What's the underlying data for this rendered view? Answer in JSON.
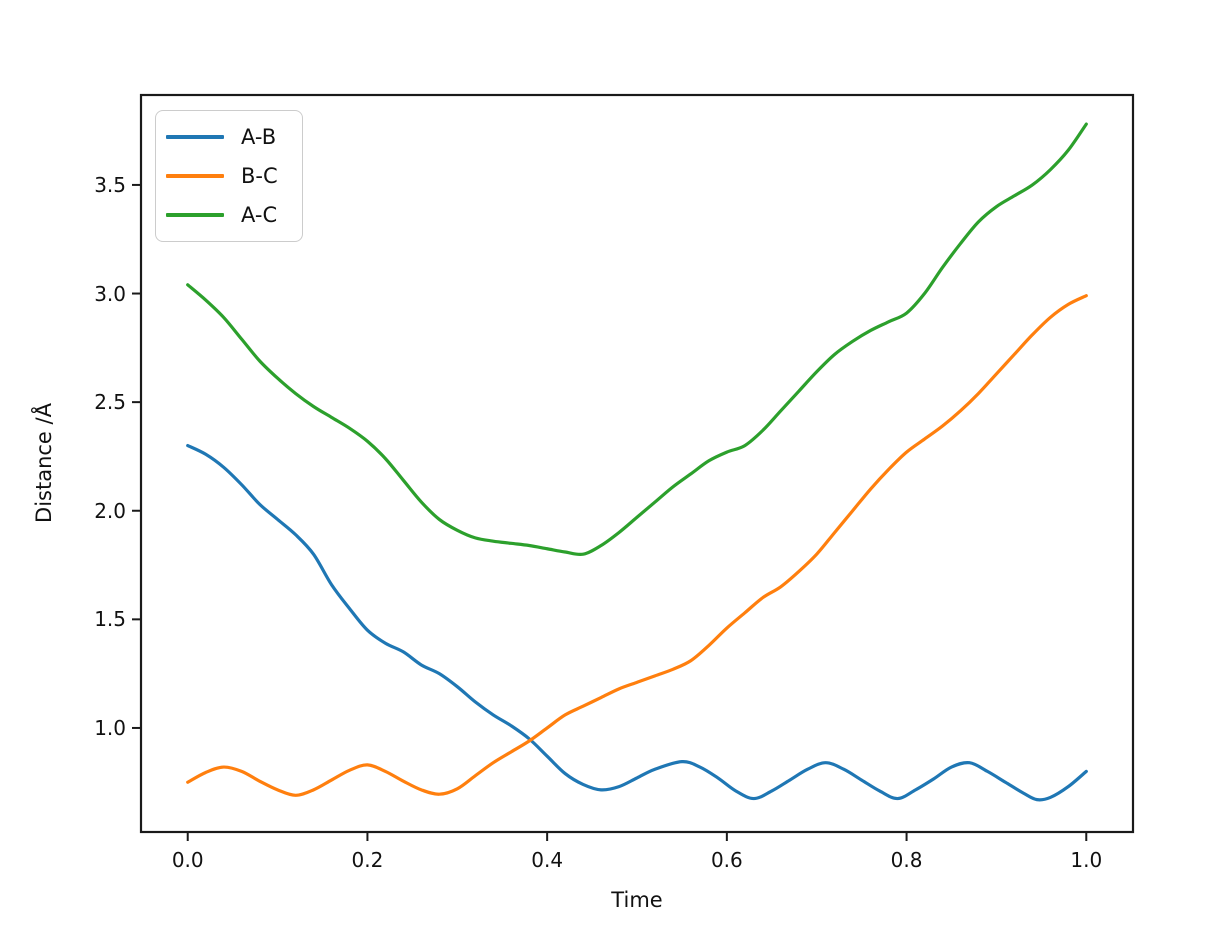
{
  "figure": {
    "background": "#ffffff",
    "text_color": "#111111",
    "spine_color": "#1a1a1a"
  },
  "axes": {
    "xlim": [
      -0.052,
      1.052
    ],
    "ylim": [
      0.521,
      3.914
    ],
    "x_ticks": [
      0.0,
      0.2,
      0.4,
      0.6,
      0.8,
      1.0
    ],
    "x_tick_labels": [
      "0.0",
      "0.2",
      "0.4",
      "0.6",
      "0.8",
      "1.0"
    ],
    "y_ticks": [
      1.0,
      1.5,
      2.0,
      2.5,
      3.0,
      3.5
    ],
    "y_tick_labels": [
      "1.0",
      "1.5",
      "2.0",
      "2.5",
      "3.0",
      "3.5"
    ],
    "grid": false
  },
  "legend": {
    "position": "upper left",
    "entries": [
      "A-B",
      "B-C",
      "A-C"
    ]
  },
  "chart_data": {
    "type": "line",
    "title": "",
    "xlabel": "Time",
    "ylabel": "Distance /Å",
    "xlim": [
      -0.05,
      1.05
    ],
    "ylim": [
      0.52,
      3.91
    ],
    "grid": false,
    "legend_position": "upper left",
    "series": [
      {
        "name": "A-B",
        "color": "#1f77b4",
        "points": [
          [
            0.0,
            2.3
          ],
          [
            0.02,
            2.26
          ],
          [
            0.04,
            2.2
          ],
          [
            0.06,
            2.12
          ],
          [
            0.08,
            2.03
          ],
          [
            0.1,
            1.96
          ],
          [
            0.12,
            1.89
          ],
          [
            0.14,
            1.8
          ],
          [
            0.16,
            1.66
          ],
          [
            0.18,
            1.55
          ],
          [
            0.2,
            1.45
          ],
          [
            0.22,
            1.39
          ],
          [
            0.24,
            1.35
          ],
          [
            0.26,
            1.29
          ],
          [
            0.28,
            1.25
          ],
          [
            0.3,
            1.19
          ],
          [
            0.32,
            1.12
          ],
          [
            0.34,
            1.06
          ],
          [
            0.36,
            1.01
          ],
          [
            0.38,
            0.95
          ],
          [
            0.4,
            0.87
          ],
          [
            0.42,
            0.79
          ],
          [
            0.44,
            0.74
          ],
          [
            0.46,
            0.715
          ],
          [
            0.48,
            0.73
          ],
          [
            0.5,
            0.77
          ],
          [
            0.52,
            0.81
          ],
          [
            0.55,
            0.845
          ],
          [
            0.57,
            0.82
          ],
          [
            0.59,
            0.77
          ],
          [
            0.61,
            0.71
          ],
          [
            0.63,
            0.675
          ],
          [
            0.65,
            0.71
          ],
          [
            0.67,
            0.76
          ],
          [
            0.69,
            0.81
          ],
          [
            0.71,
            0.84
          ],
          [
            0.73,
            0.81
          ],
          [
            0.75,
            0.76
          ],
          [
            0.77,
            0.71
          ],
          [
            0.79,
            0.675
          ],
          [
            0.81,
            0.715
          ],
          [
            0.83,
            0.765
          ],
          [
            0.85,
            0.82
          ],
          [
            0.87,
            0.84
          ],
          [
            0.89,
            0.8
          ],
          [
            0.91,
            0.75
          ],
          [
            0.93,
            0.7
          ],
          [
            0.945,
            0.67
          ],
          [
            0.96,
            0.68
          ],
          [
            0.98,
            0.73
          ],
          [
            1.0,
            0.8
          ]
        ]
      },
      {
        "name": "B-C",
        "color": "#ff7f0e",
        "points": [
          [
            0.0,
            0.75
          ],
          [
            0.02,
            0.795
          ],
          [
            0.04,
            0.82
          ],
          [
            0.06,
            0.8
          ],
          [
            0.08,
            0.755
          ],
          [
            0.1,
            0.715
          ],
          [
            0.12,
            0.69
          ],
          [
            0.14,
            0.715
          ],
          [
            0.16,
            0.76
          ],
          [
            0.18,
            0.805
          ],
          [
            0.2,
            0.83
          ],
          [
            0.22,
            0.8
          ],
          [
            0.24,
            0.755
          ],
          [
            0.26,
            0.715
          ],
          [
            0.28,
            0.695
          ],
          [
            0.3,
            0.72
          ],
          [
            0.32,
            0.78
          ],
          [
            0.34,
            0.84
          ],
          [
            0.36,
            0.89
          ],
          [
            0.38,
            0.94
          ],
          [
            0.4,
            1.0
          ],
          [
            0.42,
            1.06
          ],
          [
            0.44,
            1.1
          ],
          [
            0.46,
            1.14
          ],
          [
            0.48,
            1.18
          ],
          [
            0.5,
            1.21
          ],
          [
            0.52,
            1.24
          ],
          [
            0.54,
            1.27
          ],
          [
            0.56,
            1.31
          ],
          [
            0.58,
            1.38
          ],
          [
            0.6,
            1.46
          ],
          [
            0.62,
            1.53
          ],
          [
            0.64,
            1.6
          ],
          [
            0.66,
            1.65
          ],
          [
            0.68,
            1.72
          ],
          [
            0.7,
            1.8
          ],
          [
            0.72,
            1.9
          ],
          [
            0.74,
            2.0
          ],
          [
            0.76,
            2.1
          ],
          [
            0.78,
            2.19
          ],
          [
            0.8,
            2.27
          ],
          [
            0.82,
            2.33
          ],
          [
            0.84,
            2.39
          ],
          [
            0.86,
            2.46
          ],
          [
            0.88,
            2.54
          ],
          [
            0.9,
            2.63
          ],
          [
            0.92,
            2.72
          ],
          [
            0.94,
            2.81
          ],
          [
            0.96,
            2.89
          ],
          [
            0.98,
            2.95
          ],
          [
            1.0,
            2.99
          ]
        ]
      },
      {
        "name": "A-C",
        "color": "#2ca02c",
        "points": [
          [
            0.0,
            3.04
          ],
          [
            0.02,
            2.97
          ],
          [
            0.04,
            2.89
          ],
          [
            0.06,
            2.79
          ],
          [
            0.08,
            2.69
          ],
          [
            0.1,
            2.61
          ],
          [
            0.12,
            2.54
          ],
          [
            0.14,
            2.48
          ],
          [
            0.16,
            2.43
          ],
          [
            0.18,
            2.38
          ],
          [
            0.2,
            2.32
          ],
          [
            0.22,
            2.24
          ],
          [
            0.24,
            2.14
          ],
          [
            0.26,
            2.04
          ],
          [
            0.28,
            1.96
          ],
          [
            0.3,
            1.91
          ],
          [
            0.32,
            1.875
          ],
          [
            0.34,
            1.86
          ],
          [
            0.36,
            1.85
          ],
          [
            0.38,
            1.84
          ],
          [
            0.4,
            1.825
          ],
          [
            0.42,
            1.81
          ],
          [
            0.44,
            1.8
          ],
          [
            0.46,
            1.84
          ],
          [
            0.48,
            1.9
          ],
          [
            0.5,
            1.97
          ],
          [
            0.52,
            2.04
          ],
          [
            0.54,
            2.11
          ],
          [
            0.56,
            2.17
          ],
          [
            0.58,
            2.23
          ],
          [
            0.6,
            2.27
          ],
          [
            0.62,
            2.3
          ],
          [
            0.64,
            2.37
          ],
          [
            0.66,
            2.46
          ],
          [
            0.68,
            2.55
          ],
          [
            0.7,
            2.64
          ],
          [
            0.72,
            2.72
          ],
          [
            0.74,
            2.78
          ],
          [
            0.76,
            2.83
          ],
          [
            0.78,
            2.87
          ],
          [
            0.8,
            2.91
          ],
          [
            0.82,
            3.0
          ],
          [
            0.84,
            3.12
          ],
          [
            0.86,
            3.23
          ],
          [
            0.88,
            3.33
          ],
          [
            0.9,
            3.4
          ],
          [
            0.92,
            3.45
          ],
          [
            0.94,
            3.5
          ],
          [
            0.96,
            3.57
          ],
          [
            0.98,
            3.66
          ],
          [
            1.0,
            3.78
          ]
        ]
      }
    ]
  }
}
